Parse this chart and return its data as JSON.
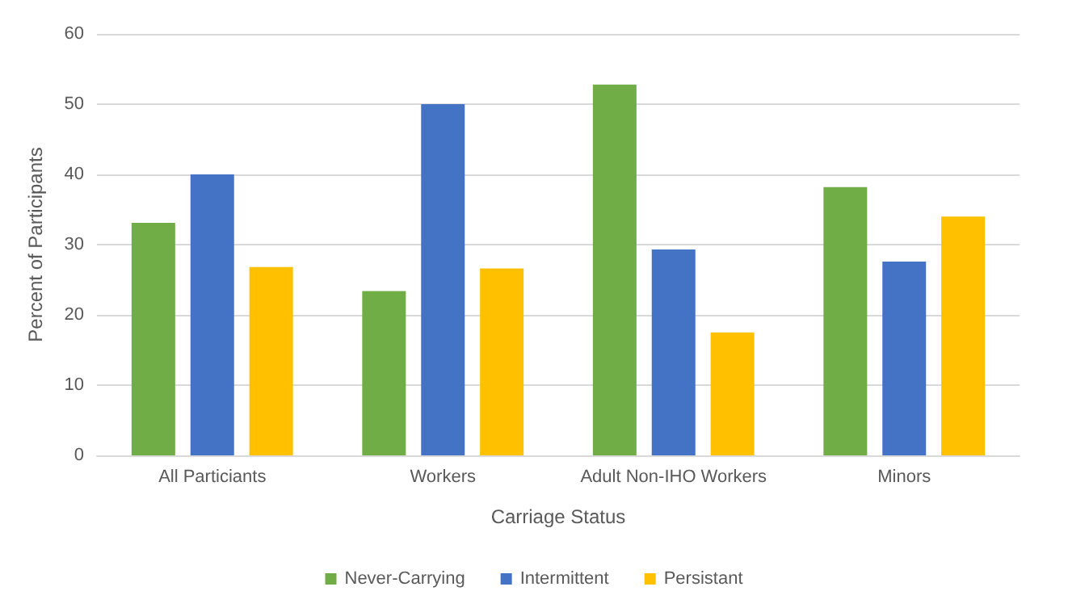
{
  "chart_data": {
    "type": "bar",
    "xlabel": "Carriage Status",
    "ylabel": "Percent of Participants",
    "categories": [
      "All Particiants",
      "Workers",
      "Adult Non-IHO Workers",
      "Minors"
    ],
    "series": [
      {
        "name": "Never-Carrying",
        "color": "#70ad47",
        "values": [
          33.1,
          23.4,
          52.8,
          38.2
        ]
      },
      {
        "name": "Intermittent",
        "color": "#4472c4",
        "values": [
          40,
          50,
          29.3,
          27.6
        ]
      },
      {
        "name": "Persistant",
        "color": "#ffc000",
        "values": [
          26.8,
          26.6,
          17.5,
          34
        ]
      }
    ],
    "ylim": [
      0,
      60
    ],
    "yticks": [
      0,
      10,
      20,
      30,
      40,
      50,
      60
    ],
    "grid": "y",
    "legend": "bottom"
  }
}
